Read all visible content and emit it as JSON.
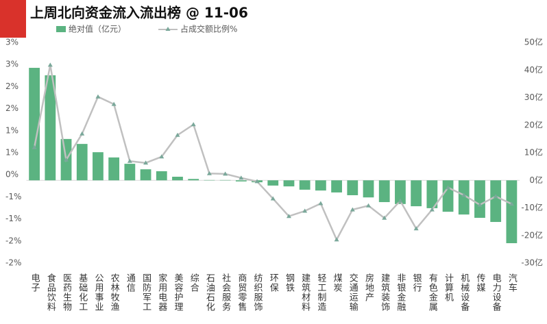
{
  "chart_data": {
    "type": "bar_line",
    "title": "上周北向资金流入流出榜 @ 11-06",
    "categories": [
      "电子",
      "食品饮料",
      "医药生物",
      "基础化工",
      "公用事业",
      "农林牧渔",
      "通信",
      "国防军工",
      "家用电器",
      "美容护理",
      "综合",
      "石油石化",
      "社会服务",
      "商贸零售",
      "纺织服饰",
      "环保",
      "钢铁",
      "建筑材料",
      "轻工制造",
      "煤炭",
      "交通运输",
      "房地产",
      "建筑装饰",
      "非银金融",
      "银行",
      "有色金属",
      "计算机",
      "机械设备",
      "传媒",
      "电力设备",
      "汽车"
    ],
    "series": [
      {
        "name": "绝对值（亿元）",
        "type": "bar",
        "axis": "y2",
        "color": "#5bb381",
        "values": [
          40.8,
          38.1,
          15.0,
          13.2,
          10.2,
          8.3,
          6.0,
          4.0,
          3.3,
          1.3,
          0.5,
          0.1,
          0.1,
          -0.4,
          -0.7,
          -1.9,
          -2.2,
          -3.4,
          -3.7,
          -4.4,
          -5.4,
          -6.2,
          -7.9,
          -8.6,
          -9.4,
          -10.1,
          -11.4,
          -12.4,
          -13.6,
          -15.1,
          -22.8
        ]
      },
      {
        "name": "占成交额比例%",
        "type": "line",
        "color": "#c0c0c0",
        "values": [
          0.62,
          2.49,
          0.34,
          0.93,
          1.77,
          1.6,
          0.31,
          0.27,
          0.41,
          0.9,
          1.14,
          0.03,
          0.02,
          -0.07,
          -0.15,
          -0.54,
          -0.94,
          -0.82,
          -0.65,
          -1.47,
          -0.79,
          -0.7,
          -0.98,
          -0.59,
          -1.22,
          -0.79,
          -0.29,
          -0.46,
          -0.68,
          -0.49,
          -0.66
        ]
      }
    ],
    "ylim": [
      -2,
      3
    ],
    "yticks": [
      {
        "value": -2,
        "label": "-2%"
      },
      {
        "value": -1.5,
        "label": "-2%"
      },
      {
        "value": -1,
        "label": "-1%"
      },
      {
        "value": -0.5,
        "label": "-1%"
      },
      {
        "value": 0,
        "label": "0%"
      },
      {
        "value": 0.5,
        "label": "1%"
      },
      {
        "value": 1,
        "label": "1%"
      },
      {
        "value": 1.5,
        "label": "2%"
      },
      {
        "value": 2,
        "label": "2%"
      },
      {
        "value": 2.5,
        "label": "3%"
      },
      {
        "value": 3,
        "label": "3%"
      }
    ],
    "y2lim": [
      -30,
      50
    ],
    "y2ticks": [
      {
        "value": -30,
        "label": "-30亿"
      },
      {
        "value": -20,
        "label": "-20亿"
      },
      {
        "value": -10,
        "label": "-10亿"
      },
      {
        "value": 0,
        "label": "0亿"
      },
      {
        "value": 10,
        "label": "10亿"
      },
      {
        "value": 20,
        "label": "20亿"
      },
      {
        "value": 30,
        "label": "30亿"
      },
      {
        "value": 40,
        "label": "40亿"
      },
      {
        "value": 50,
        "label": "50亿"
      }
    ]
  }
}
